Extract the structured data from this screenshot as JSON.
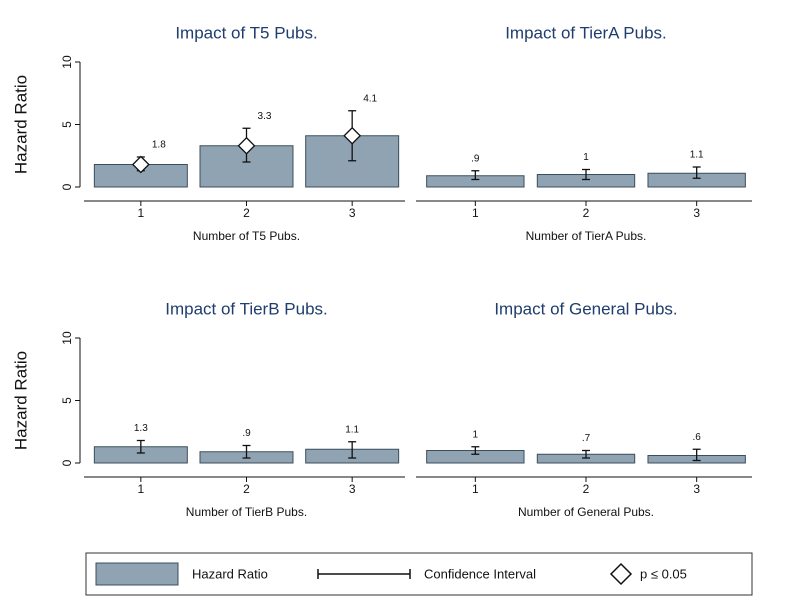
{
  "chart_data": [
    {
      "type": "bar",
      "title": "Impact of T5 Pubs.",
      "xlabel": "Number of T5 Pubs.",
      "ylabel": "Hazard Ratio",
      "categories": [
        "1",
        "2",
        "3"
      ],
      "values": [
        1.8,
        3.3,
        4.1
      ],
      "value_labels": [
        "1.8",
        "3.3",
        "4.1"
      ],
      "ci_low": [
        1.3,
        2.0,
        2.1
      ],
      "ci_high": [
        2.4,
        4.7,
        6.1
      ],
      "significant": [
        true,
        true,
        true
      ],
      "ylim": [
        0,
        10
      ],
      "yticks": [
        0,
        5,
        10
      ],
      "color": "#8fa3b3"
    },
    {
      "type": "bar",
      "title": "Impact of TierA Pubs.",
      "xlabel": "Number of TierA Pubs.",
      "categories": [
        "1",
        "2",
        "3"
      ],
      "values": [
        0.9,
        1,
        1.1
      ],
      "value_labels": [
        ".9",
        "1",
        "1.1"
      ],
      "ci_low": [
        0.6,
        0.6,
        0.7
      ],
      "ci_high": [
        1.3,
        1.4,
        1.6
      ],
      "significant": [
        false,
        false,
        false
      ],
      "ylim": [
        0,
        10
      ],
      "color": "#8fa3b3"
    },
    {
      "type": "bar",
      "title": "Impact of TierB Pubs.",
      "xlabel": "Number of TierB Pubs.",
      "ylabel": "Hazard Ratio",
      "categories": [
        "1",
        "2",
        "3"
      ],
      "values": [
        1.3,
        0.9,
        1.1
      ],
      "value_labels": [
        "1.3",
        ".9",
        "1.1"
      ],
      "ci_low": [
        0.8,
        0.4,
        0.4
      ],
      "ci_high": [
        1.8,
        1.4,
        1.7
      ],
      "significant": [
        false,
        false,
        false
      ],
      "ylim": [
        0,
        10
      ],
      "yticks": [
        0,
        5,
        10
      ],
      "color": "#8fa3b3"
    },
    {
      "type": "bar",
      "title": "Impact of General Pubs.",
      "xlabel": "Number of General Pubs.",
      "categories": [
        "1",
        "2",
        "3"
      ],
      "values": [
        1,
        0.7,
        0.6
      ],
      "value_labels": [
        "1",
        ".7",
        ".6"
      ],
      "ci_low": [
        0.7,
        0.4,
        0.2
      ],
      "ci_high": [
        1.3,
        1.0,
        1.1
      ],
      "significant": [
        false,
        false,
        false
      ],
      "ylim": [
        0,
        10
      ],
      "color": "#8fa3b3"
    }
  ],
  "legend": {
    "items": [
      "Hazard Ratio",
      "Confidence Interval",
      "p ≤ 0.05"
    ]
  }
}
